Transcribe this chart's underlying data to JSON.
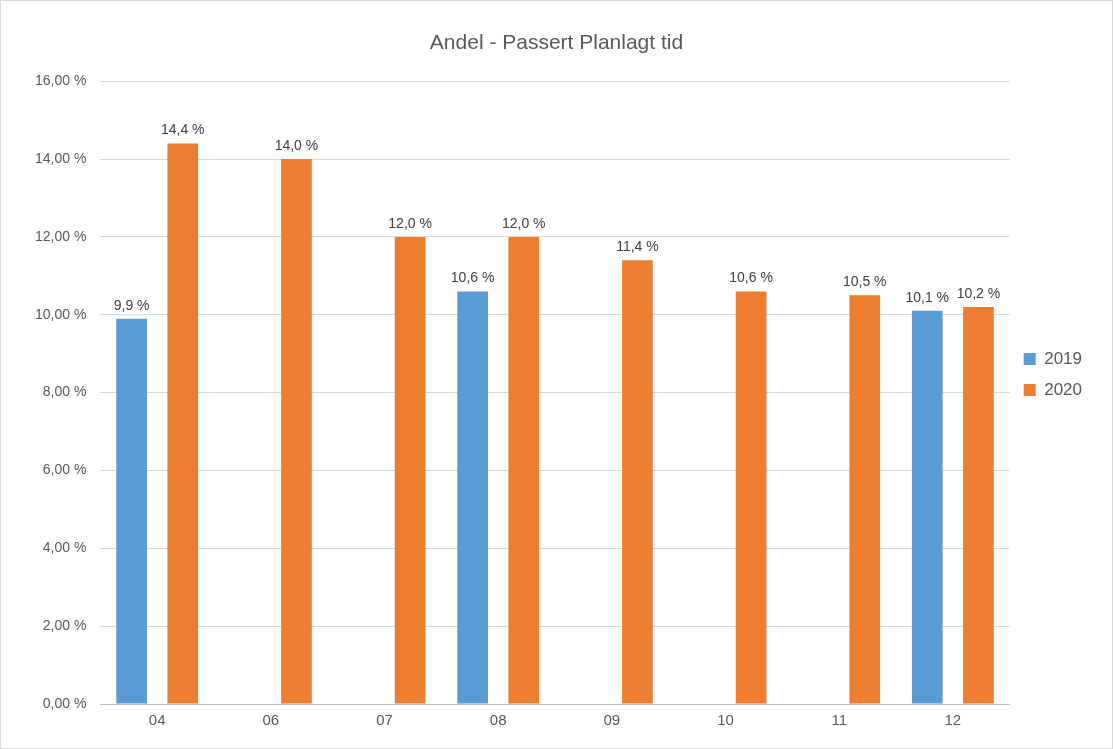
{
  "chart_data": {
    "type": "bar",
    "title": "Andel - Passert Planlagt tid",
    "categories": [
      "04",
      "06",
      "07",
      "08",
      "09",
      "10",
      "11",
      "12"
    ],
    "series": [
      {
        "name": "2019",
        "color": "#5b9bd5",
        "values": [
          9.9,
          null,
          null,
          10.6,
          null,
          null,
          null,
          10.1
        ],
        "value_labels": [
          "9,9 %",
          null,
          null,
          "10,6 %",
          null,
          null,
          null,
          "10,1 %"
        ]
      },
      {
        "name": "2020",
        "color": "#ed7d31",
        "values": [
          14.4,
          14.0,
          12.0,
          12.0,
          11.4,
          10.6,
          10.5,
          10.2
        ],
        "value_labels": [
          "14,4 %",
          "14,0 %",
          "12,0 %",
          "12,0 %",
          "11,4 %",
          "10,6 %",
          "10,5 %",
          "10,2 %"
        ]
      }
    ],
    "ylim": [
      0,
      16
    ],
    "yticks": [
      {
        "value": 0,
        "label": "0,00 %"
      },
      {
        "value": 2,
        "label": "2,00 %"
      },
      {
        "value": 4,
        "label": "4,00 %"
      },
      {
        "value": 6,
        "label": "6,00 %"
      },
      {
        "value": 8,
        "label": "8,00 %"
      },
      {
        "value": 10,
        "label": "10,00 %"
      },
      {
        "value": 12,
        "label": "12,00 %"
      },
      {
        "value": 14,
        "label": "14,00 %"
      },
      {
        "value": 16,
        "label": "16,00 %"
      }
    ],
    "grid": "y",
    "legend": "right"
  }
}
